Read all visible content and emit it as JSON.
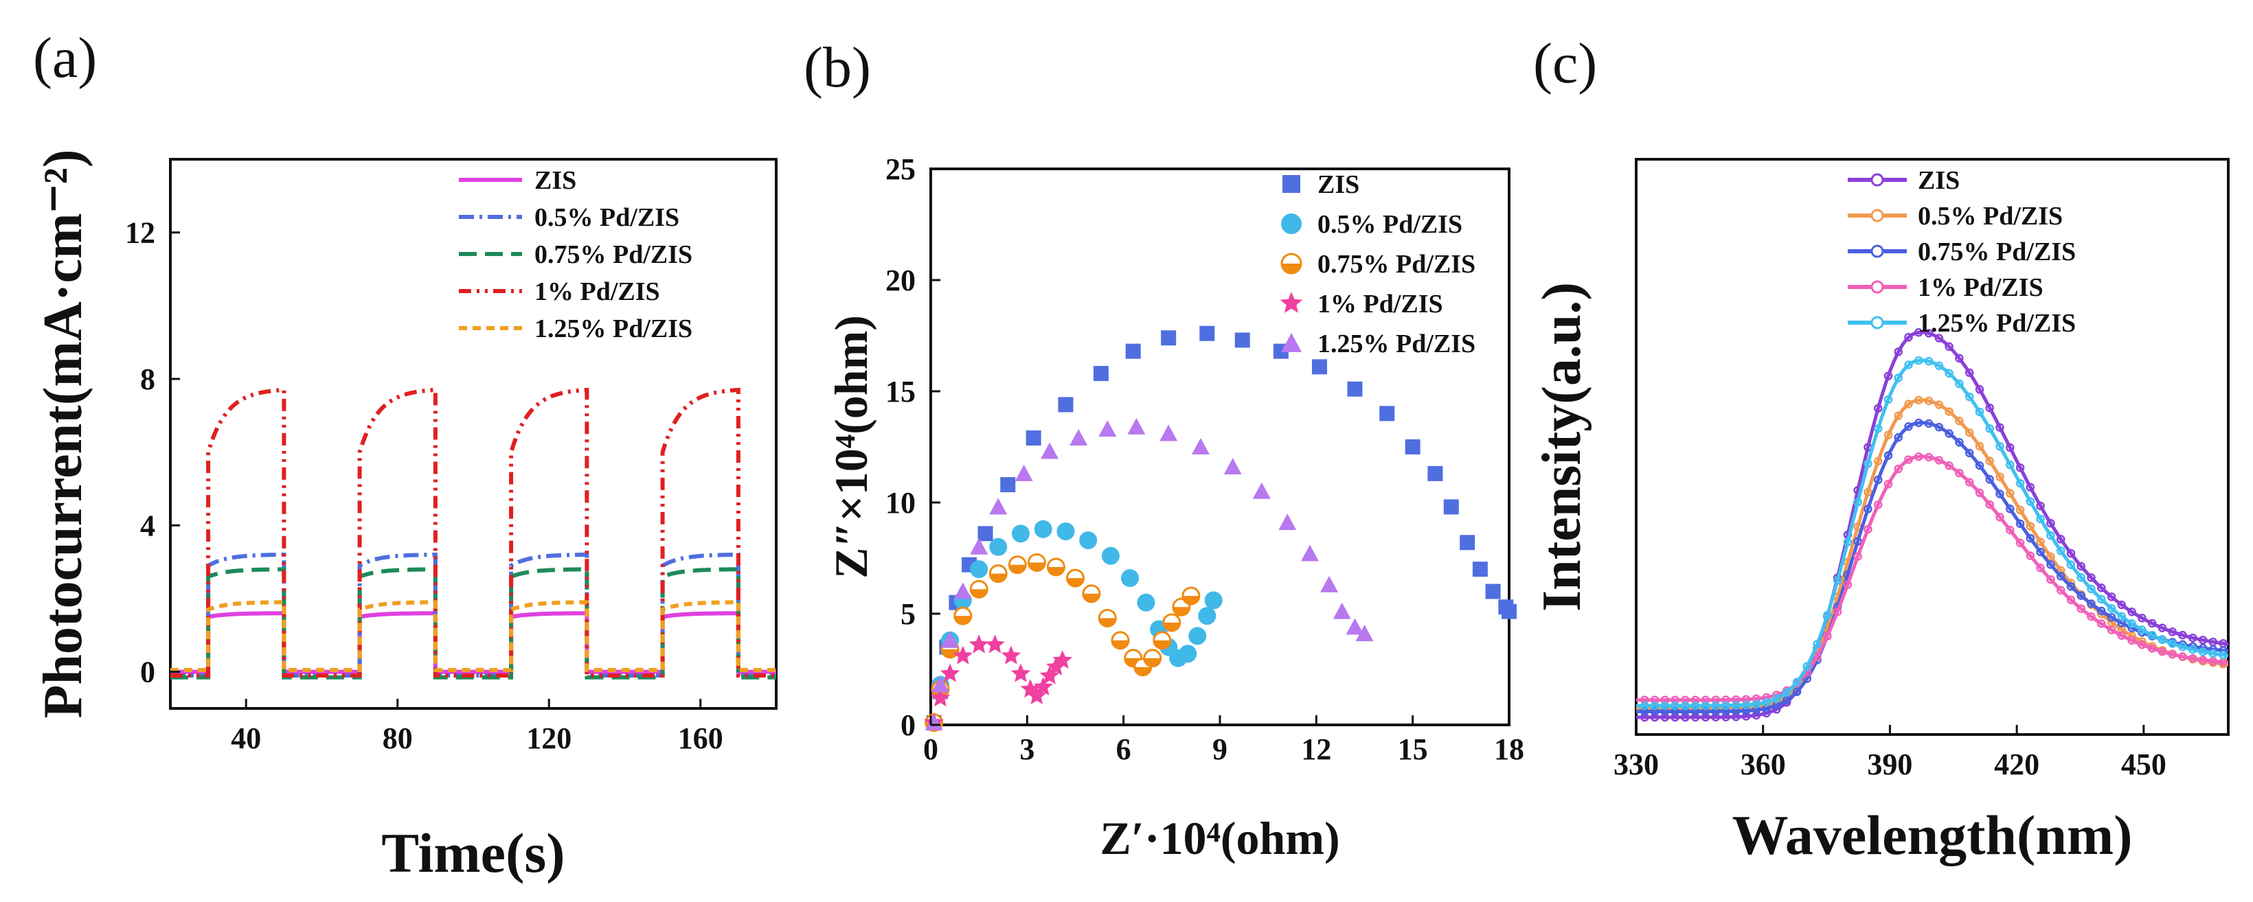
{
  "colors": {
    "ZIS_a": "#e040e0",
    "p05_a": "#4f6fe0",
    "p075_a": "#1e8a5a",
    "p1_a": "#e02020",
    "p125_a": "#f0a020",
    "ZIS_b": "#4f6fe0",
    "p05_b": "#40b8e8",
    "p075_b": "#f08a10",
    "p1_b": "#f040a0",
    "p125_b": "#b878f0",
    "ZIS_c": "#8a40d8",
    "p05_c": "#f09a50",
    "p075_c": "#4a60e0",
    "p1_c": "#f060b8",
    "p125_c": "#40c0f0"
  },
  "chart_data": [
    {
      "panel": "(a)",
      "type": "line",
      "xlabel": "Time(s)",
      "ylabel": "Photocurrent(mA·cm⁻²)",
      "xlim": [
        20,
        180
      ],
      "ylim": [
        -1,
        14
      ],
      "xticks": [
        "40",
        "80",
        "120",
        "160"
      ],
      "yticks": [
        "0",
        "4",
        "8",
        "12"
      ],
      "light_on_intervals": [
        [
          30,
          50
        ],
        [
          70,
          90
        ],
        [
          110,
          130
        ],
        [
          150,
          170
        ]
      ],
      "series": [
        {
          "name": "ZIS",
          "style": "solid",
          "on_start": 1.5,
          "on_end": 1.6,
          "off": 0.0
        },
        {
          "name": "0.5% Pd/ZIS",
          "style": "dashdot",
          "on_start": 2.9,
          "on_end": 3.2,
          "off": -0.1
        },
        {
          "name": "0.75% Pd/ZIS",
          "style": "dash",
          "on_start": 2.6,
          "on_end": 2.8,
          "off": -0.15
        },
        {
          "name": "1% Pd/ZIS",
          "style": "dashdotdot",
          "on_start": 6.0,
          "on_end": 7.7,
          "off": -0.1
        },
        {
          "name": "1.25% Pd/ZIS",
          "style": "shortdash",
          "on_start": 1.7,
          "on_end": 1.9,
          "off": 0.05
        }
      ]
    },
    {
      "panel": "(b)",
      "type": "scatter",
      "xlabel": "Z′·10⁴(ohm)",
      "ylabel": "Z″×10⁴(ohm)",
      "xlim": [
        0,
        18
      ],
      "ylim": [
        0,
        25
      ],
      "xticks": [
        "0",
        "3",
        "6",
        "9",
        "12",
        "15",
        "18"
      ],
      "yticks": [
        "0",
        "5",
        "10",
        "15",
        "20",
        "25"
      ],
      "series": [
        {
          "name": "ZIS",
          "marker": "square",
          "points": [
            [
              0.1,
              0.1
            ],
            [
              0.3,
              1.5
            ],
            [
              0.5,
              3.5
            ],
            [
              0.8,
              5.5
            ],
            [
              1.2,
              7.2
            ],
            [
              1.7,
              8.6
            ],
            [
              2.4,
              10.8
            ],
            [
              3.2,
              12.9
            ],
            [
              4.2,
              14.4
            ],
            [
              5.3,
              15.8
            ],
            [
              6.3,
              16.8
            ],
            [
              7.4,
              17.4
            ],
            [
              8.6,
              17.6
            ],
            [
              9.7,
              17.3
            ],
            [
              10.9,
              16.8
            ],
            [
              12.1,
              16.1
            ],
            [
              13.2,
              15.1
            ],
            [
              14.2,
              14.0
            ],
            [
              15.0,
              12.5
            ],
            [
              15.7,
              11.3
            ],
            [
              16.2,
              9.8
            ],
            [
              16.7,
              8.2
            ],
            [
              17.1,
              7.0
            ],
            [
              17.5,
              6.0
            ],
            [
              17.9,
              5.3
            ],
            [
              18.0,
              5.1
            ]
          ]
        },
        {
          "name": "0.5% Pd/ZIS",
          "marker": "circle",
          "points": [
            [
              0.1,
              0.1
            ],
            [
              0.3,
              1.8
            ],
            [
              0.6,
              3.8
            ],
            [
              1.0,
              5.6
            ],
            [
              1.5,
              7.0
            ],
            [
              2.1,
              8.0
            ],
            [
              2.8,
              8.6
            ],
            [
              3.5,
              8.8
            ],
            [
              4.2,
              8.7
            ],
            [
              4.9,
              8.3
            ],
            [
              5.6,
              7.6
            ],
            [
              6.2,
              6.6
            ],
            [
              6.7,
              5.5
            ],
            [
              7.1,
              4.3
            ],
            [
              7.4,
              3.5
            ],
            [
              7.7,
              3.0
            ],
            [
              8.0,
              3.2
            ],
            [
              8.3,
              4.0
            ],
            [
              8.6,
              4.9
            ],
            [
              8.8,
              5.6
            ]
          ]
        },
        {
          "name": "0.75% Pd/ZIS",
          "marker": "halfcircle",
          "points": [
            [
              0.1,
              0.1
            ],
            [
              0.3,
              1.6
            ],
            [
              0.6,
              3.4
            ],
            [
              1.0,
              4.9
            ],
            [
              1.5,
              6.1
            ],
            [
              2.1,
              6.8
            ],
            [
              2.7,
              7.2
            ],
            [
              3.3,
              7.3
            ],
            [
              3.9,
              7.1
            ],
            [
              4.5,
              6.6
            ],
            [
              5.0,
              5.9
            ],
            [
              5.5,
              4.8
            ],
            [
              5.9,
              3.8
            ],
            [
              6.3,
              3.0
            ],
            [
              6.6,
              2.6
            ],
            [
              6.9,
              3.0
            ],
            [
              7.2,
              3.8
            ],
            [
              7.5,
              4.6
            ],
            [
              7.8,
              5.3
            ],
            [
              8.1,
              5.8
            ]
          ]
        },
        {
          "name": "1% Pd/ZIS",
          "marker": "star",
          "points": [
            [
              0.1,
              0.1
            ],
            [
              0.3,
              1.2
            ],
            [
              0.6,
              2.3
            ],
            [
              1.0,
              3.1
            ],
            [
              1.5,
              3.6
            ],
            [
              2.0,
              3.6
            ],
            [
              2.5,
              3.1
            ],
            [
              2.8,
              2.3
            ],
            [
              3.1,
              1.6
            ],
            [
              3.3,
              1.3
            ],
            [
              3.5,
              1.7
            ],
            [
              3.7,
              2.2
            ],
            [
              3.9,
              2.6
            ],
            [
              4.1,
              2.9
            ]
          ]
        },
        {
          "name": "1.25% Pd/ZIS",
          "marker": "triangle",
          "points": [
            [
              0.1,
              0.1
            ],
            [
              0.3,
              1.8
            ],
            [
              0.6,
              3.8
            ],
            [
              1.0,
              6.0
            ],
            [
              1.5,
              8.0
            ],
            [
              2.1,
              9.8
            ],
            [
              2.9,
              11.3
            ],
            [
              3.7,
              12.3
            ],
            [
              4.6,
              12.9
            ],
            [
              5.5,
              13.3
            ],
            [
              6.4,
              13.4
            ],
            [
              7.4,
              13.1
            ],
            [
              8.4,
              12.5
            ],
            [
              9.4,
              11.6
            ],
            [
              10.3,
              10.5
            ],
            [
              11.1,
              9.1
            ],
            [
              11.8,
              7.7
            ],
            [
              12.4,
              6.3
            ],
            [
              12.8,
              5.1
            ],
            [
              13.2,
              4.4
            ],
            [
              13.5,
              4.1
            ]
          ]
        }
      ]
    },
    {
      "panel": "(c)",
      "type": "line",
      "xlabel": "Wavelength(nm)",
      "ylabel": "Intensity(a.u.)",
      "xlim": [
        330,
        470
      ],
      "ylim": [
        0,
        1
      ],
      "xticks": [
        "330",
        "360",
        "390",
        "420",
        "450"
      ],
      "series": [
        {
          "name": "ZIS",
          "marker": "circle",
          "peak": 0.71,
          "tail": 0.12,
          "base": 0.03
        },
        {
          "name": "0.5% Pd/ZIS",
          "marker": "square",
          "peak": 0.59,
          "tail": 0.07,
          "base": 0.045
        },
        {
          "name": "0.75% Pd/ZIS",
          "marker": "triangle",
          "peak": 0.55,
          "tail": 0.1,
          "base": 0.04
        },
        {
          "name": "1% Pd/ZIS",
          "marker": "star",
          "peak": 0.49,
          "tail": 0.06,
          "base": 0.06
        },
        {
          "name": "1.25% Pd/ZIS",
          "marker": "triangle",
          "peak": 0.66,
          "tail": 0.08,
          "base": 0.05
        }
      ]
    }
  ],
  "panels": {
    "a": {
      "label": "(a)"
    },
    "b": {
      "label": "(b)"
    },
    "c": {
      "label": "(c)"
    }
  }
}
